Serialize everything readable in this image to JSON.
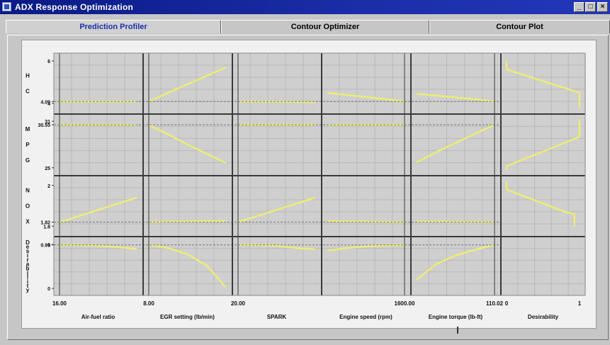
{
  "window": {
    "title": "ADX Response Optimization",
    "minimize_label": "_",
    "maximize_label": "□",
    "close_label": "×"
  },
  "tabs": [
    {
      "label": "Prediction Profiler",
      "active": true
    },
    {
      "label": "Contour Optimizer",
      "active": false
    },
    {
      "label": "Contour Plot",
      "active": false
    }
  ],
  "colors": {
    "curve": "#ecec78",
    "grid": "#b9b9b9",
    "plot_bg": "#cfcfcf",
    "divider": "#3a3a3a",
    "dashed": "#777777",
    "tab_active_text": "#1a2fae"
  },
  "responses": [
    {
      "label": "HC",
      "ticks": [
        {
          "v": 6,
          "label": "6"
        },
        {
          "v": 4.09,
          "label": "4.09"
        },
        {
          "v": 4,
          "label": "4"
        }
      ],
      "ylim": [
        3.8,
        6.1
      ]
    },
    {
      "label": "MPG",
      "ticks": [
        {
          "v": 31,
          "label": "31"
        },
        {
          "v": 30.55,
          "label": "30.55"
        },
        {
          "v": 25,
          "label": "25"
        }
      ],
      "ylim": [
        24.8,
        31.2
      ]
    },
    {
      "label": "NOX",
      "ticks": [
        {
          "v": 2,
          "label": "2"
        },
        {
          "v": 1.82,
          "label": "1.82"
        },
        {
          "v": 1.8,
          "label": "1.8"
        }
      ],
      "ylim": [
        1.78,
        2.02
      ]
    },
    {
      "label": "Desirability",
      "ticks": [
        {
          "v": 1,
          "label": "1"
        },
        {
          "v": 0.99,
          "label": "0.99"
        },
        {
          "v": 0,
          "label": "0"
        }
      ],
      "ylim": [
        -0.03,
        1.05
      ]
    }
  ],
  "factors": [
    {
      "label": "Air-fuel ratio",
      "current": "16.00"
    },
    {
      "label": "EGR setting (lb/min)",
      "current": "8.00"
    },
    {
      "label": "SPARK",
      "current": "20.00"
    },
    {
      "label": "Engine speed (rpm)",
      "current": "1600.00"
    },
    {
      "label": "Engine torque (lb-ft)",
      "current": "110.02"
    }
  ],
  "desirability_column": {
    "label": "Desirability",
    "tick_labels": [
      "0",
      "1"
    ]
  },
  "chart_data": {
    "type": "line",
    "title": "",
    "x_levels": [
      0,
      0.25,
      0.5,
      0.75,
      1
    ],
    "current_x_level": [
      0,
      0,
      0,
      1,
      1
    ],
    "series": [
      {
        "row": "HC",
        "col": "Air-fuel ratio",
        "values": [
          4.09,
          4.09,
          4.09,
          4.09,
          4.09
        ]
      },
      {
        "row": "HC",
        "col": "EGR setting (lb/min)",
        "values": [
          4.09,
          4.5,
          4.9,
          5.3,
          5.7
        ]
      },
      {
        "row": "HC",
        "col": "SPARK",
        "values": [
          4.09,
          4.09,
          4.08,
          4.07,
          4.06
        ]
      },
      {
        "row": "HC",
        "col": "Engine speed (rpm)",
        "values": [
          4.5,
          4.4,
          4.3,
          4.2,
          4.09
        ]
      },
      {
        "row": "HC",
        "col": "Engine torque (lb-ft)",
        "values": [
          4.45,
          4.37,
          4.28,
          4.2,
          4.09
        ]
      },
      {
        "row": "MPG",
        "col": "Air-fuel ratio",
        "values": [
          30.55,
          30.55,
          30.55,
          30.55,
          30.55
        ]
      },
      {
        "row": "MPG",
        "col": "EGR setting (lb/min)",
        "values": [
          30.55,
          29.3,
          28.0,
          26.8,
          25.6
        ]
      },
      {
        "row": "MPG",
        "col": "SPARK",
        "values": [
          30.55,
          30.55,
          30.55,
          30.55,
          30.55
        ]
      },
      {
        "row": "MPG",
        "col": "Engine speed (rpm)",
        "values": [
          30.55,
          30.55,
          30.55,
          30.55,
          30.55
        ]
      },
      {
        "row": "MPG",
        "col": "Engine torque (lb-ft)",
        "values": [
          25.7,
          27.0,
          28.2,
          29.4,
          30.55
        ]
      },
      {
        "row": "NOX",
        "col": "Air-fuel ratio",
        "values": [
          1.82,
          1.85,
          1.88,
          1.91,
          1.94
        ]
      },
      {
        "row": "NOX",
        "col": "EGR setting (lb/min)",
        "values": [
          1.82,
          1.822,
          1.823,
          1.824,
          1.825
        ]
      },
      {
        "row": "NOX",
        "col": "SPARK",
        "values": [
          1.82,
          1.85,
          1.88,
          1.91,
          1.94
        ]
      },
      {
        "row": "NOX",
        "col": "Engine speed (rpm)",
        "values": [
          1.825,
          1.823,
          1.822,
          1.821,
          1.82
        ]
      },
      {
        "row": "NOX",
        "col": "Engine torque (lb-ft)",
        "values": [
          1.822,
          1.822,
          1.821,
          1.821,
          1.82
        ]
      },
      {
        "row": "Desirability",
        "col": "Air-fuel ratio",
        "values": [
          0.99,
          0.985,
          0.97,
          0.94,
          0.9
        ]
      },
      {
        "row": "Desirability",
        "col": "EGR setting (lb/min)",
        "values": [
          0.99,
          0.92,
          0.78,
          0.52,
          0.02
        ]
      },
      {
        "row": "Desirability",
        "col": "SPARK",
        "values": [
          0.99,
          0.985,
          0.97,
          0.92,
          0.89
        ]
      },
      {
        "row": "Desirability",
        "col": "Engine speed (rpm)",
        "values": [
          0.86,
          0.92,
          0.955,
          0.975,
          0.99
        ]
      },
      {
        "row": "Desirability",
        "col": "Engine torque (lb-ft)",
        "values": [
          0.2,
          0.55,
          0.75,
          0.88,
          0.99
        ]
      }
    ],
    "desirability_functions": [
      {
        "row": "HC",
        "points": [
          [
            0,
            6
          ],
          [
            0,
            5.6
          ],
          [
            1,
            4.5
          ],
          [
            1,
            4.0
          ],
          [
            1,
            3.8
          ]
        ]
      },
      {
        "row": "MPG",
        "points": [
          [
            1,
            31.2
          ],
          [
            1,
            31
          ],
          [
            1,
            29.0
          ],
          [
            0,
            25.2
          ],
          [
            0,
            24.8
          ]
        ]
      },
      {
        "row": "NOX",
        "points": [
          [
            0,
            2.02
          ],
          [
            0,
            1.98
          ],
          [
            0.8,
            1.87
          ],
          [
            0.93,
            1.86
          ],
          [
            0.93,
            1.8
          ]
        ]
      }
    ]
  }
}
